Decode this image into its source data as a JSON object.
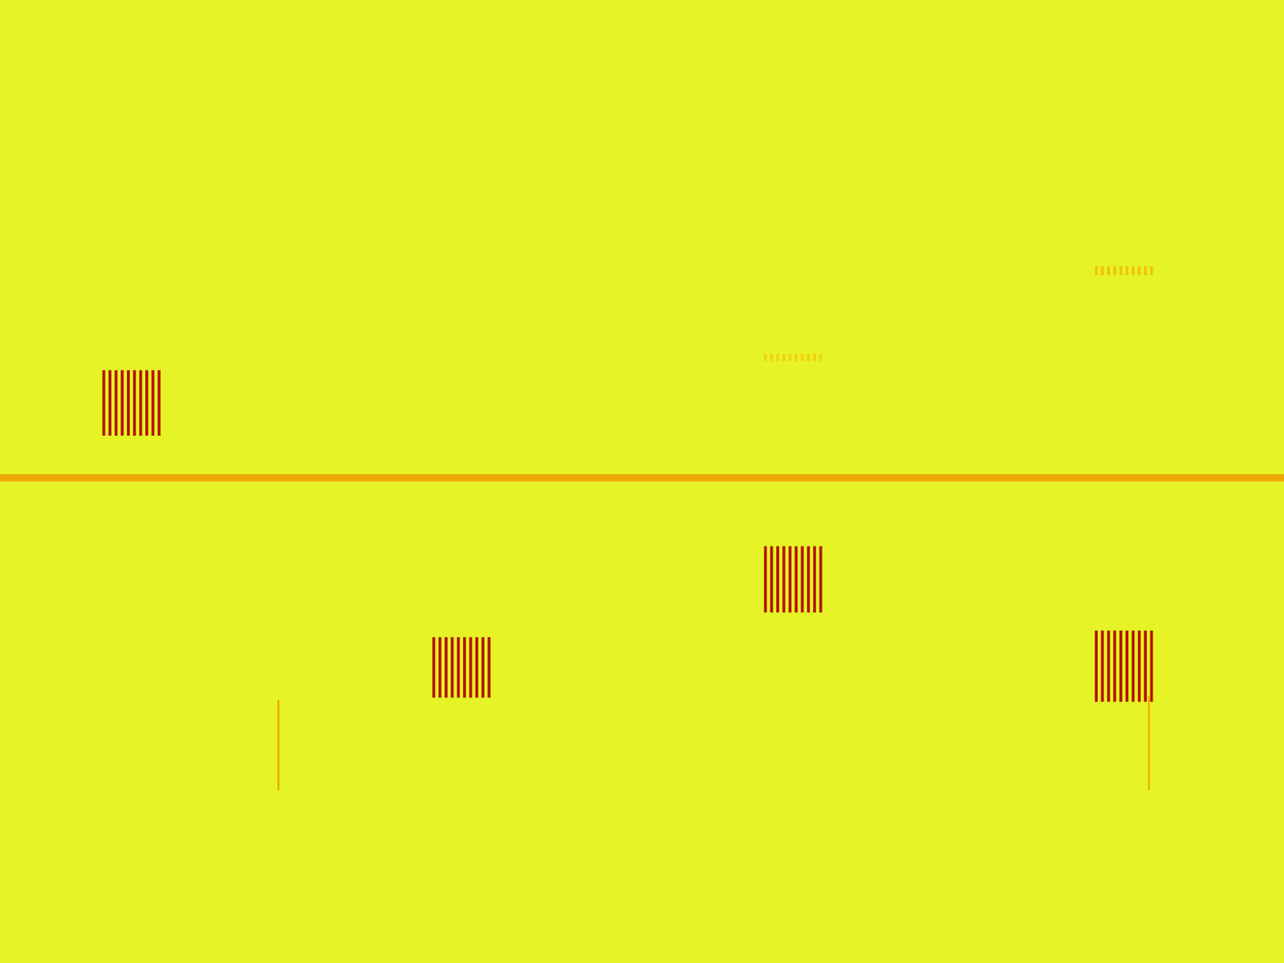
{
  "chart_data": {
    "type": "heatmap",
    "tick_labels": false,
    "grid": false,
    "xlim": [
      0,
      1568
    ],
    "ylim": [
      0,
      1176
    ],
    "color_range": [
      0,
      1
    ],
    "cells": [
      [
        0,
        1568,
        0,
        1176,
        0.12
      ],
      [
        0,
        1568,
        579,
        588,
        0.55
      ],
      [
        339,
        341,
        855,
        965,
        0.6
      ],
      [
        1402,
        1404,
        850,
        965,
        0.55
      ],
      [
        125,
        128.5,
        452,
        532,
        0.95
      ],
      [
        132.5,
        136,
        452,
        532,
        0.95
      ],
      [
        140,
        143.5,
        452,
        532,
        0.95
      ],
      [
        147.5,
        151,
        452,
        532,
        0.95
      ],
      [
        155,
        158.5,
        452,
        532,
        0.95
      ],
      [
        162.5,
        166,
        452,
        532,
        0.95
      ],
      [
        170,
        173.5,
        452,
        532,
        0.95
      ],
      [
        177.5,
        181,
        452,
        532,
        0.95
      ],
      [
        185,
        188.5,
        452,
        532,
        0.95
      ],
      [
        192.5,
        196,
        452,
        532,
        0.95
      ],
      [
        528,
        531.5,
        778,
        852,
        0.95
      ],
      [
        535.5,
        539,
        778,
        852,
        0.95
      ],
      [
        543,
        546.5,
        778,
        852,
        0.95
      ],
      [
        550.5,
        554,
        778,
        852,
        0.95
      ],
      [
        558,
        561.5,
        778,
        852,
        0.95
      ],
      [
        565.5,
        569,
        778,
        852,
        0.95
      ],
      [
        573,
        576.5,
        778,
        852,
        0.95
      ],
      [
        580.5,
        584,
        778,
        852,
        0.95
      ],
      [
        588,
        591.5,
        778,
        852,
        0.95
      ],
      [
        595.5,
        599,
        778,
        852,
        0.95
      ],
      [
        933,
        936.5,
        667,
        748,
        0.95
      ],
      [
        940.5,
        944,
        667,
        748,
        0.95
      ],
      [
        948,
        951.5,
        667,
        748,
        0.95
      ],
      [
        955.5,
        959,
        667,
        748,
        0.95
      ],
      [
        963,
        966.5,
        667,
        748,
        0.95
      ],
      [
        970.5,
        974,
        667,
        748,
        0.95
      ],
      [
        978,
        981.5,
        667,
        748,
        0.95
      ],
      [
        985.5,
        989,
        667,
        748,
        0.95
      ],
      [
        993,
        996.5,
        667,
        748,
        0.95
      ],
      [
        1000.5,
        1004,
        667,
        748,
        0.95
      ],
      [
        1337,
        1340.5,
        770,
        857,
        0.95
      ],
      [
        1344.5,
        1348,
        770,
        857,
        0.95
      ],
      [
        1352,
        1355.5,
        770,
        857,
        0.95
      ],
      [
        1359.5,
        1363,
        770,
        857,
        0.95
      ],
      [
        1367,
        1370.5,
        770,
        857,
        0.95
      ],
      [
        1374.5,
        1378,
        770,
        857,
        0.95
      ],
      [
        1382,
        1385.5,
        770,
        857,
        0.95
      ],
      [
        1389.5,
        1393,
        770,
        857,
        0.95
      ],
      [
        1397,
        1400.5,
        770,
        857,
        0.95
      ],
      [
        1404.5,
        1408,
        770,
        857,
        0.95
      ],
      [
        933,
        936.5,
        432,
        441,
        0.4
      ],
      [
        940.5,
        944,
        432,
        441,
        0.4
      ],
      [
        948,
        951.5,
        432,
        441,
        0.4
      ],
      [
        955.5,
        959,
        432,
        441,
        0.4
      ],
      [
        963,
        966.5,
        432,
        441,
        0.4
      ],
      [
        970.5,
        974,
        432,
        441,
        0.4
      ],
      [
        978,
        981.5,
        432,
        441,
        0.4
      ],
      [
        985.5,
        989,
        432,
        441,
        0.4
      ],
      [
        993,
        996.5,
        432,
        441,
        0.4
      ],
      [
        1000.5,
        1004,
        432,
        441,
        0.4
      ],
      [
        1337,
        1340.5,
        325,
        336,
        0.45
      ],
      [
        1344.5,
        1348,
        325,
        336,
        0.45
      ],
      [
        1352,
        1355.5,
        325,
        336,
        0.45
      ],
      [
        1359.5,
        1363,
        325,
        336,
        0.45
      ],
      [
        1367,
        1370.5,
        325,
        336,
        0.45
      ],
      [
        1374.5,
        1378,
        325,
        336,
        0.45
      ],
      [
        1382,
        1385.5,
        325,
        336,
        0.45
      ],
      [
        1389.5,
        1393,
        325,
        336,
        0.45
      ],
      [
        1397,
        1400.5,
        325,
        336,
        0.45
      ],
      [
        1404.5,
        1408,
        325,
        336,
        0.45
      ]
    ]
  }
}
